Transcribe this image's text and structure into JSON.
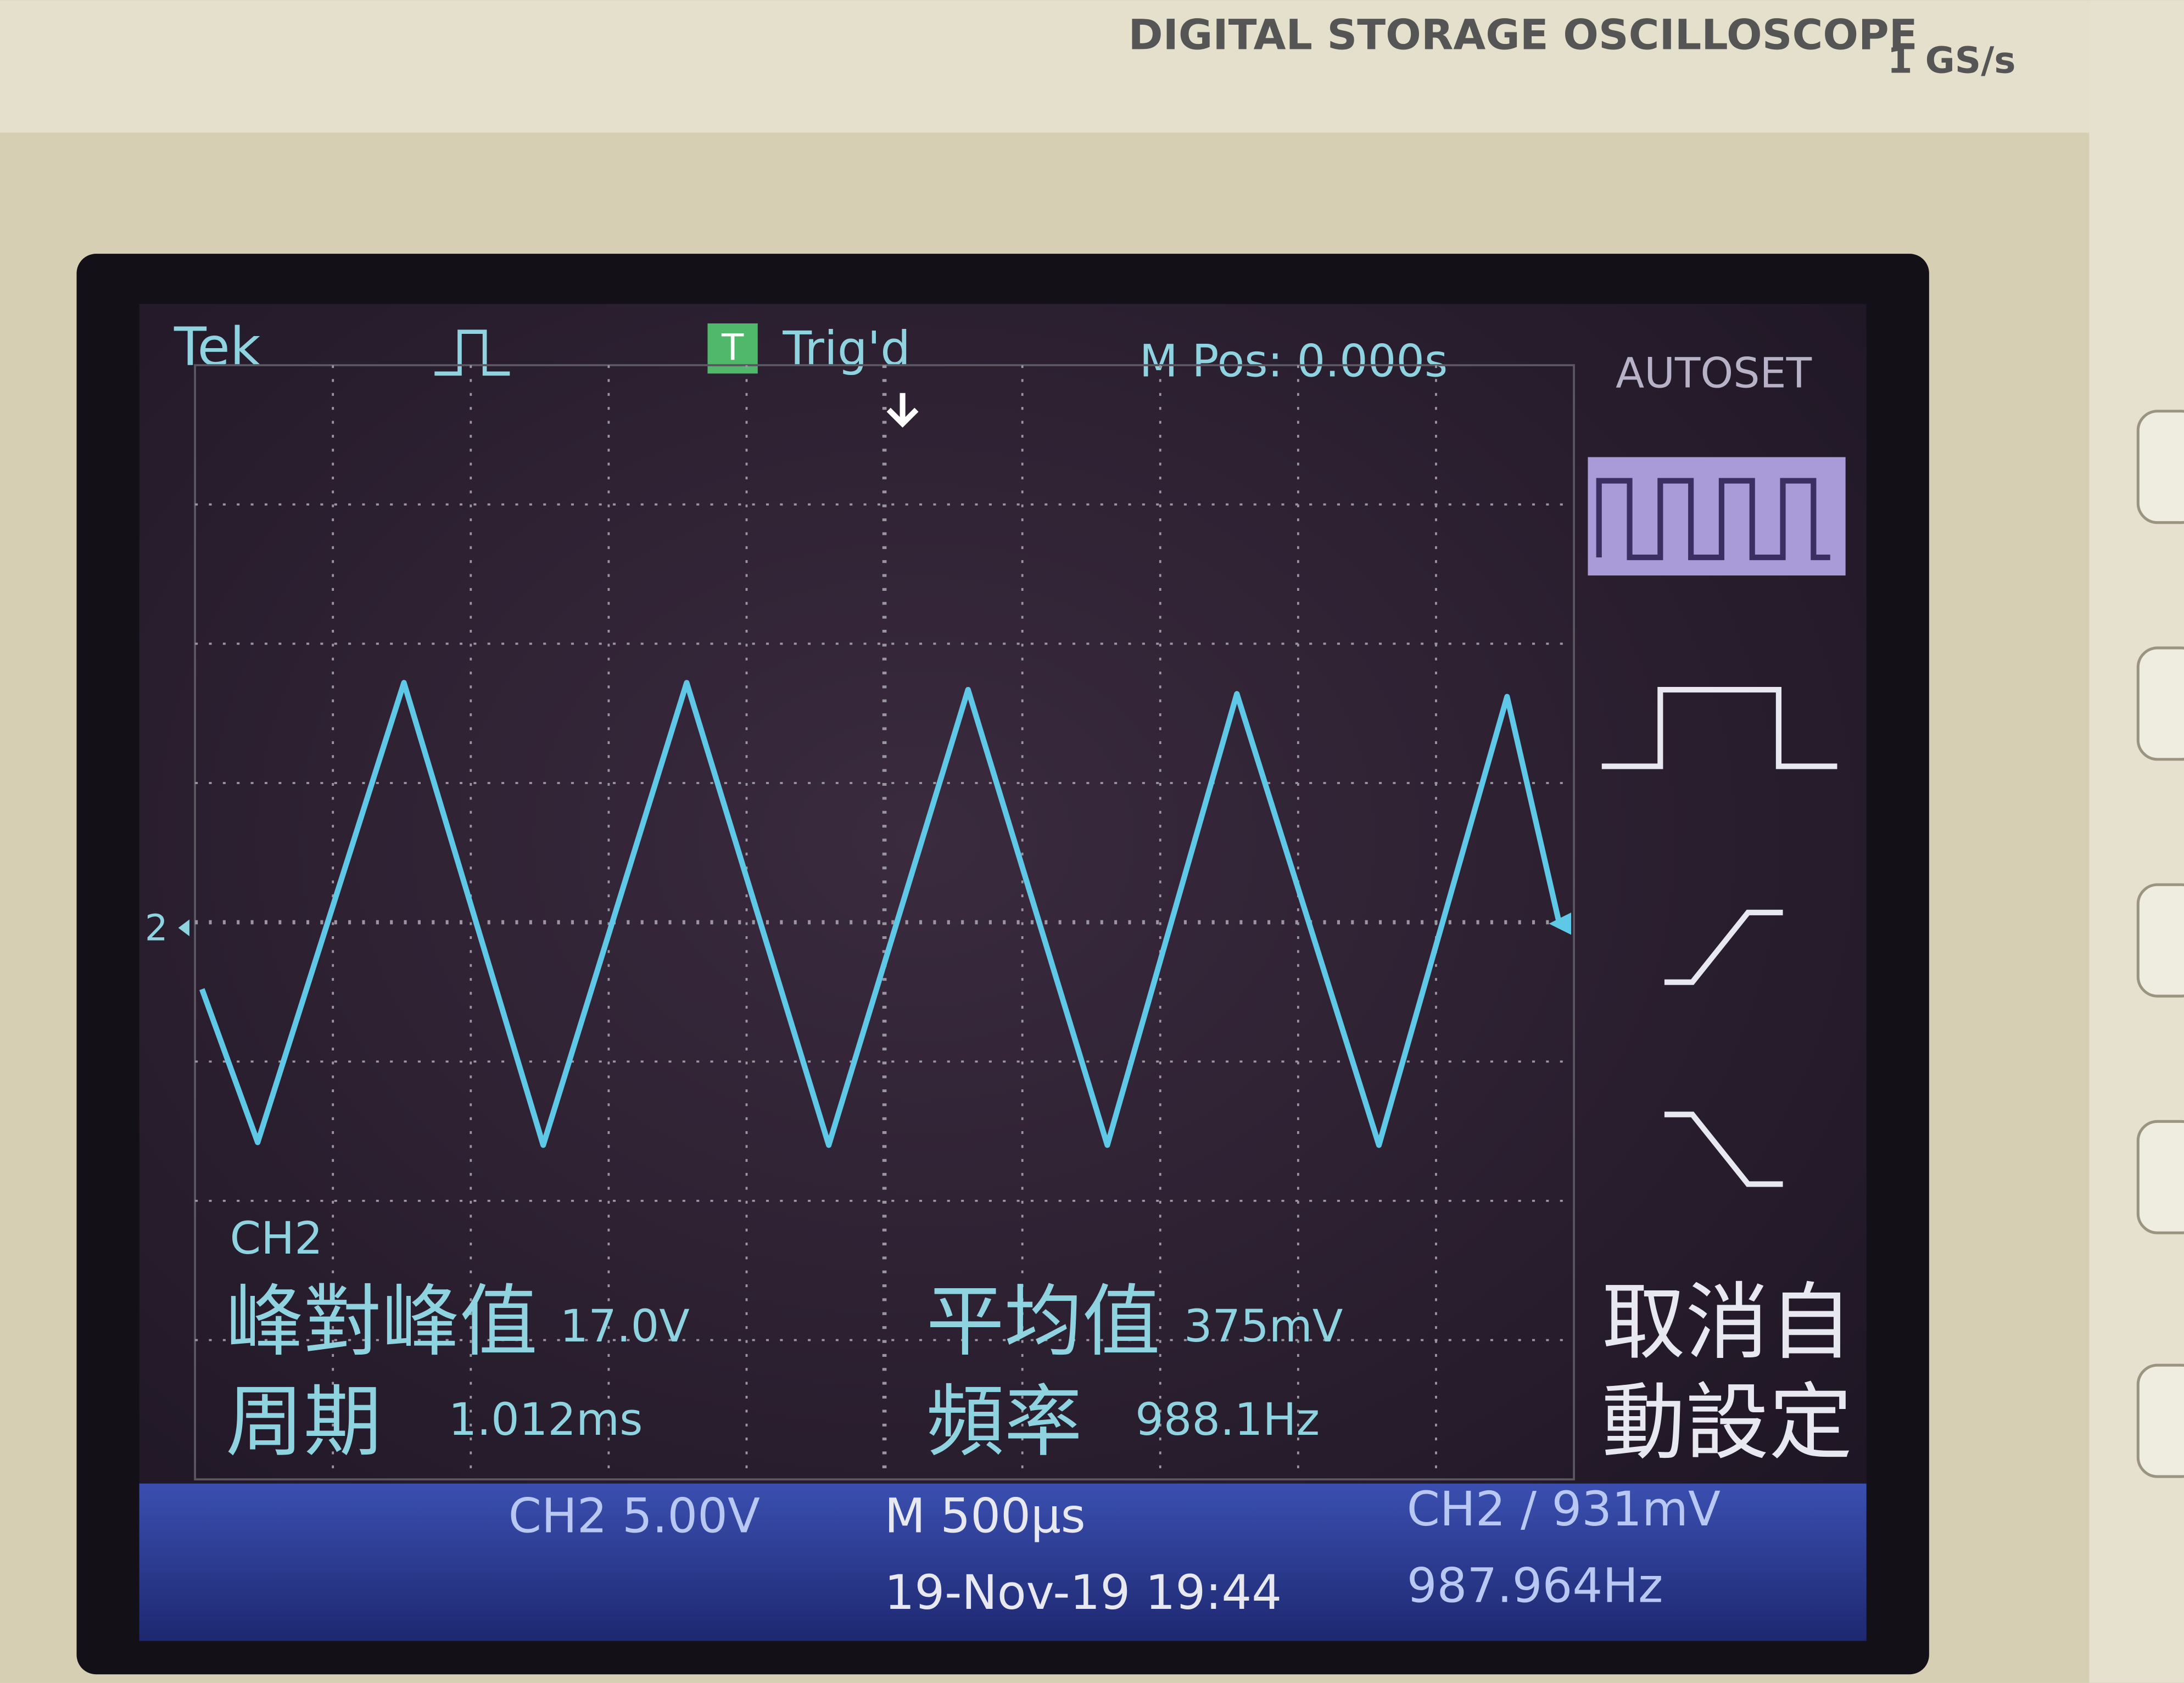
{
  "header": {
    "model_caption": "DIGITAL STORAGE OSCILLOSCOPE",
    "sample_rate": "1 GS/s"
  },
  "status_bar": {
    "brand": "Tek",
    "trigger_icon": "T",
    "trigger_state": "Trig'd",
    "position": "M Pos: 0.000s",
    "menu_title": "AUTOSET"
  },
  "waveform": {
    "channel_marker": "2"
  },
  "measurements": {
    "channel": "CH2",
    "items": [
      {
        "label": "峰對峰值",
        "value": "17.0V"
      },
      {
        "label": "平均值",
        "value": "375mV"
      },
      {
        "label": "周期",
        "value": "1.012ms"
      },
      {
        "label": "頻率",
        "value": "988.1Hz"
      }
    ]
  },
  "side_menu": {
    "undo_autoset": [
      "取消自",
      "動設定"
    ]
  },
  "footer": {
    "channel_scale": "CH2 5.00V",
    "timebase": "M 500µs",
    "trigger_setting": "CH2 ∕ 931mV",
    "datetime": "19-Nov-19 19:44",
    "trigger_frequency": "987.964Hz"
  }
}
